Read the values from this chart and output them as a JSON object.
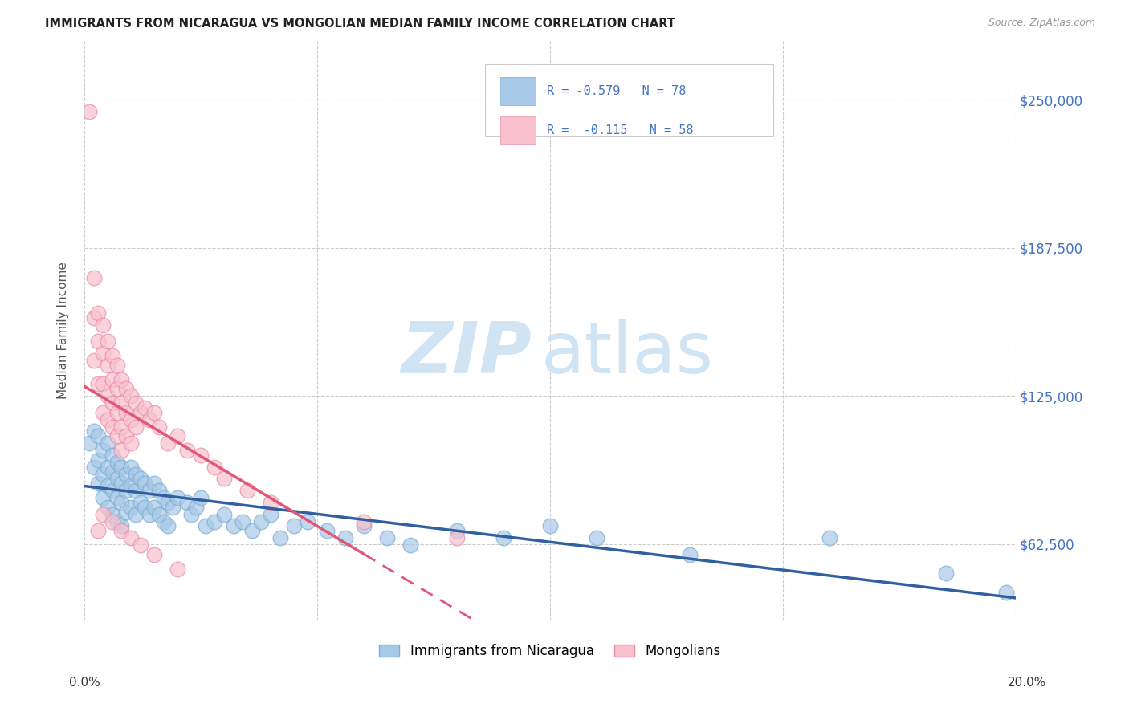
{
  "title": "IMMIGRANTS FROM NICARAGUA VS MONGOLIAN MEDIAN FAMILY INCOME CORRELATION CHART",
  "source": "Source: ZipAtlas.com",
  "ylabel": "Median Family Income",
  "y_ticks": [
    62500,
    125000,
    187500,
    250000
  ],
  "y_tick_labels": [
    "$62,500",
    "$125,000",
    "$187,500",
    "$250,000"
  ],
  "x_range": [
    0.0,
    0.2
  ],
  "y_range": [
    30000,
    275000
  ],
  "legend_blue_r": "-0.579",
  "legend_blue_n": "78",
  "legend_pink_r": "-0.115",
  "legend_pink_n": "58",
  "blue_color": "#a8c8e8",
  "blue_edge_color": "#7aafd4",
  "pink_color": "#f8c0cc",
  "pink_edge_color": "#e890a8",
  "blue_line_color": "#3060a0",
  "pink_line_color": "#e05878",
  "legend_label_blue": "Immigrants from Nicaragua",
  "legend_label_pink": "Mongolians",
  "blue_scatter_x": [
    0.001,
    0.002,
    0.002,
    0.003,
    0.003,
    0.003,
    0.004,
    0.004,
    0.004,
    0.005,
    0.005,
    0.005,
    0.005,
    0.006,
    0.006,
    0.006,
    0.006,
    0.007,
    0.007,
    0.007,
    0.007,
    0.008,
    0.008,
    0.008,
    0.008,
    0.009,
    0.009,
    0.009,
    0.01,
    0.01,
    0.01,
    0.011,
    0.011,
    0.011,
    0.012,
    0.012,
    0.013,
    0.013,
    0.014,
    0.014,
    0.015,
    0.015,
    0.016,
    0.016,
    0.017,
    0.017,
    0.018,
    0.018,
    0.019,
    0.02,
    0.022,
    0.023,
    0.024,
    0.025,
    0.026,
    0.028,
    0.03,
    0.032,
    0.034,
    0.036,
    0.038,
    0.04,
    0.042,
    0.045,
    0.048,
    0.052,
    0.056,
    0.06,
    0.065,
    0.07,
    0.08,
    0.09,
    0.1,
    0.11,
    0.13,
    0.16,
    0.185,
    0.198
  ],
  "blue_scatter_y": [
    105000,
    110000,
    95000,
    108000,
    98000,
    88000,
    102000,
    92000,
    82000,
    105000,
    95000,
    87000,
    78000,
    100000,
    93000,
    85000,
    75000,
    97000,
    90000,
    82000,
    72000,
    95000,
    88000,
    80000,
    70000,
    92000,
    85000,
    76000,
    95000,
    87000,
    78000,
    92000,
    85000,
    75000,
    90000,
    80000,
    88000,
    78000,
    85000,
    75000,
    88000,
    78000,
    85000,
    75000,
    82000,
    72000,
    80000,
    70000,
    78000,
    82000,
    80000,
    75000,
    78000,
    82000,
    70000,
    72000,
    75000,
    70000,
    72000,
    68000,
    72000,
    75000,
    65000,
    70000,
    72000,
    68000,
    65000,
    70000,
    65000,
    62000,
    68000,
    65000,
    70000,
    65000,
    58000,
    65000,
    50000,
    42000
  ],
  "pink_scatter_x": [
    0.001,
    0.002,
    0.002,
    0.002,
    0.003,
    0.003,
    0.003,
    0.004,
    0.004,
    0.004,
    0.004,
    0.005,
    0.005,
    0.005,
    0.005,
    0.006,
    0.006,
    0.006,
    0.006,
    0.007,
    0.007,
    0.007,
    0.007,
    0.008,
    0.008,
    0.008,
    0.008,
    0.009,
    0.009,
    0.009,
    0.01,
    0.01,
    0.01,
    0.011,
    0.011,
    0.012,
    0.013,
    0.014,
    0.015,
    0.016,
    0.018,
    0.02,
    0.022,
    0.025,
    0.028,
    0.03,
    0.035,
    0.04,
    0.06,
    0.08,
    0.003,
    0.004,
    0.006,
    0.008,
    0.01,
    0.012,
    0.015,
    0.02
  ],
  "pink_scatter_y": [
    245000,
    175000,
    158000,
    140000,
    160000,
    148000,
    130000,
    155000,
    143000,
    130000,
    118000,
    148000,
    138000,
    125000,
    115000,
    142000,
    132000,
    122000,
    112000,
    138000,
    128000,
    118000,
    108000,
    132000,
    122000,
    112000,
    102000,
    128000,
    118000,
    108000,
    125000,
    115000,
    105000,
    122000,
    112000,
    118000,
    120000,
    115000,
    118000,
    112000,
    105000,
    108000,
    102000,
    100000,
    95000,
    90000,
    85000,
    80000,
    72000,
    65000,
    68000,
    75000,
    72000,
    68000,
    65000,
    62000,
    58000,
    52000
  ]
}
